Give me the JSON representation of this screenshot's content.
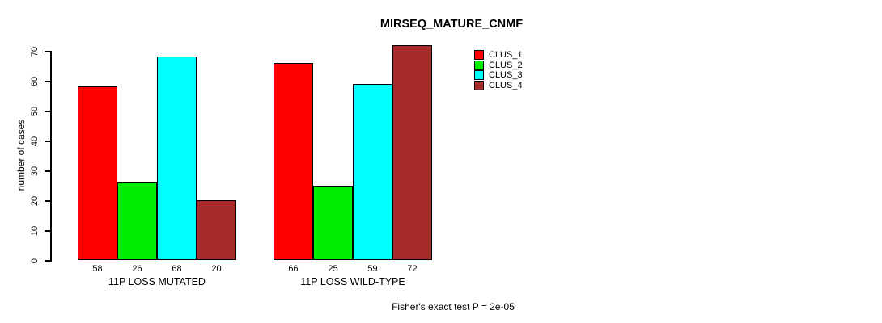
{
  "title": "MIRSEQ_MATURE_CNMF",
  "footer": "Fisher's exact test P = 2e-05",
  "chart_data": {
    "type": "bar",
    "title": "MIRSEQ_MATURE_CNMF",
    "ylabel": "number of cases",
    "xlabel": "",
    "groups": [
      "11P LOSS MUTATED",
      "11P LOSS WILD-TYPE"
    ],
    "series": [
      {
        "name": "CLUS_1",
        "color": "#ff0000",
        "values": [
          58,
          66
        ]
      },
      {
        "name": "CLUS_2",
        "color": "#00ee00",
        "values": [
          26,
          25
        ]
      },
      {
        "name": "CLUS_3",
        "color": "#00ffff",
        "values": [
          68,
          59
        ]
      },
      {
        "name": "CLUS_4",
        "color": "#a52a2a",
        "values": [
          20,
          72
        ]
      }
    ],
    "yticks": [
      0,
      10,
      20,
      30,
      40,
      50,
      60,
      70
    ],
    "ylim": [
      0,
      72
    ],
    "bar_value_labels": [
      [
        58,
        26,
        68,
        20
      ],
      [
        66,
        25,
        59,
        72
      ]
    ],
    "legend": {
      "position": "top-right",
      "entries": [
        "CLUS_1",
        "CLUS_2",
        "CLUS_3",
        "CLUS_4"
      ]
    },
    "annotation": "Fisher's exact test P = 2e-05",
    "grid": false,
    "background": "#ffffff"
  }
}
